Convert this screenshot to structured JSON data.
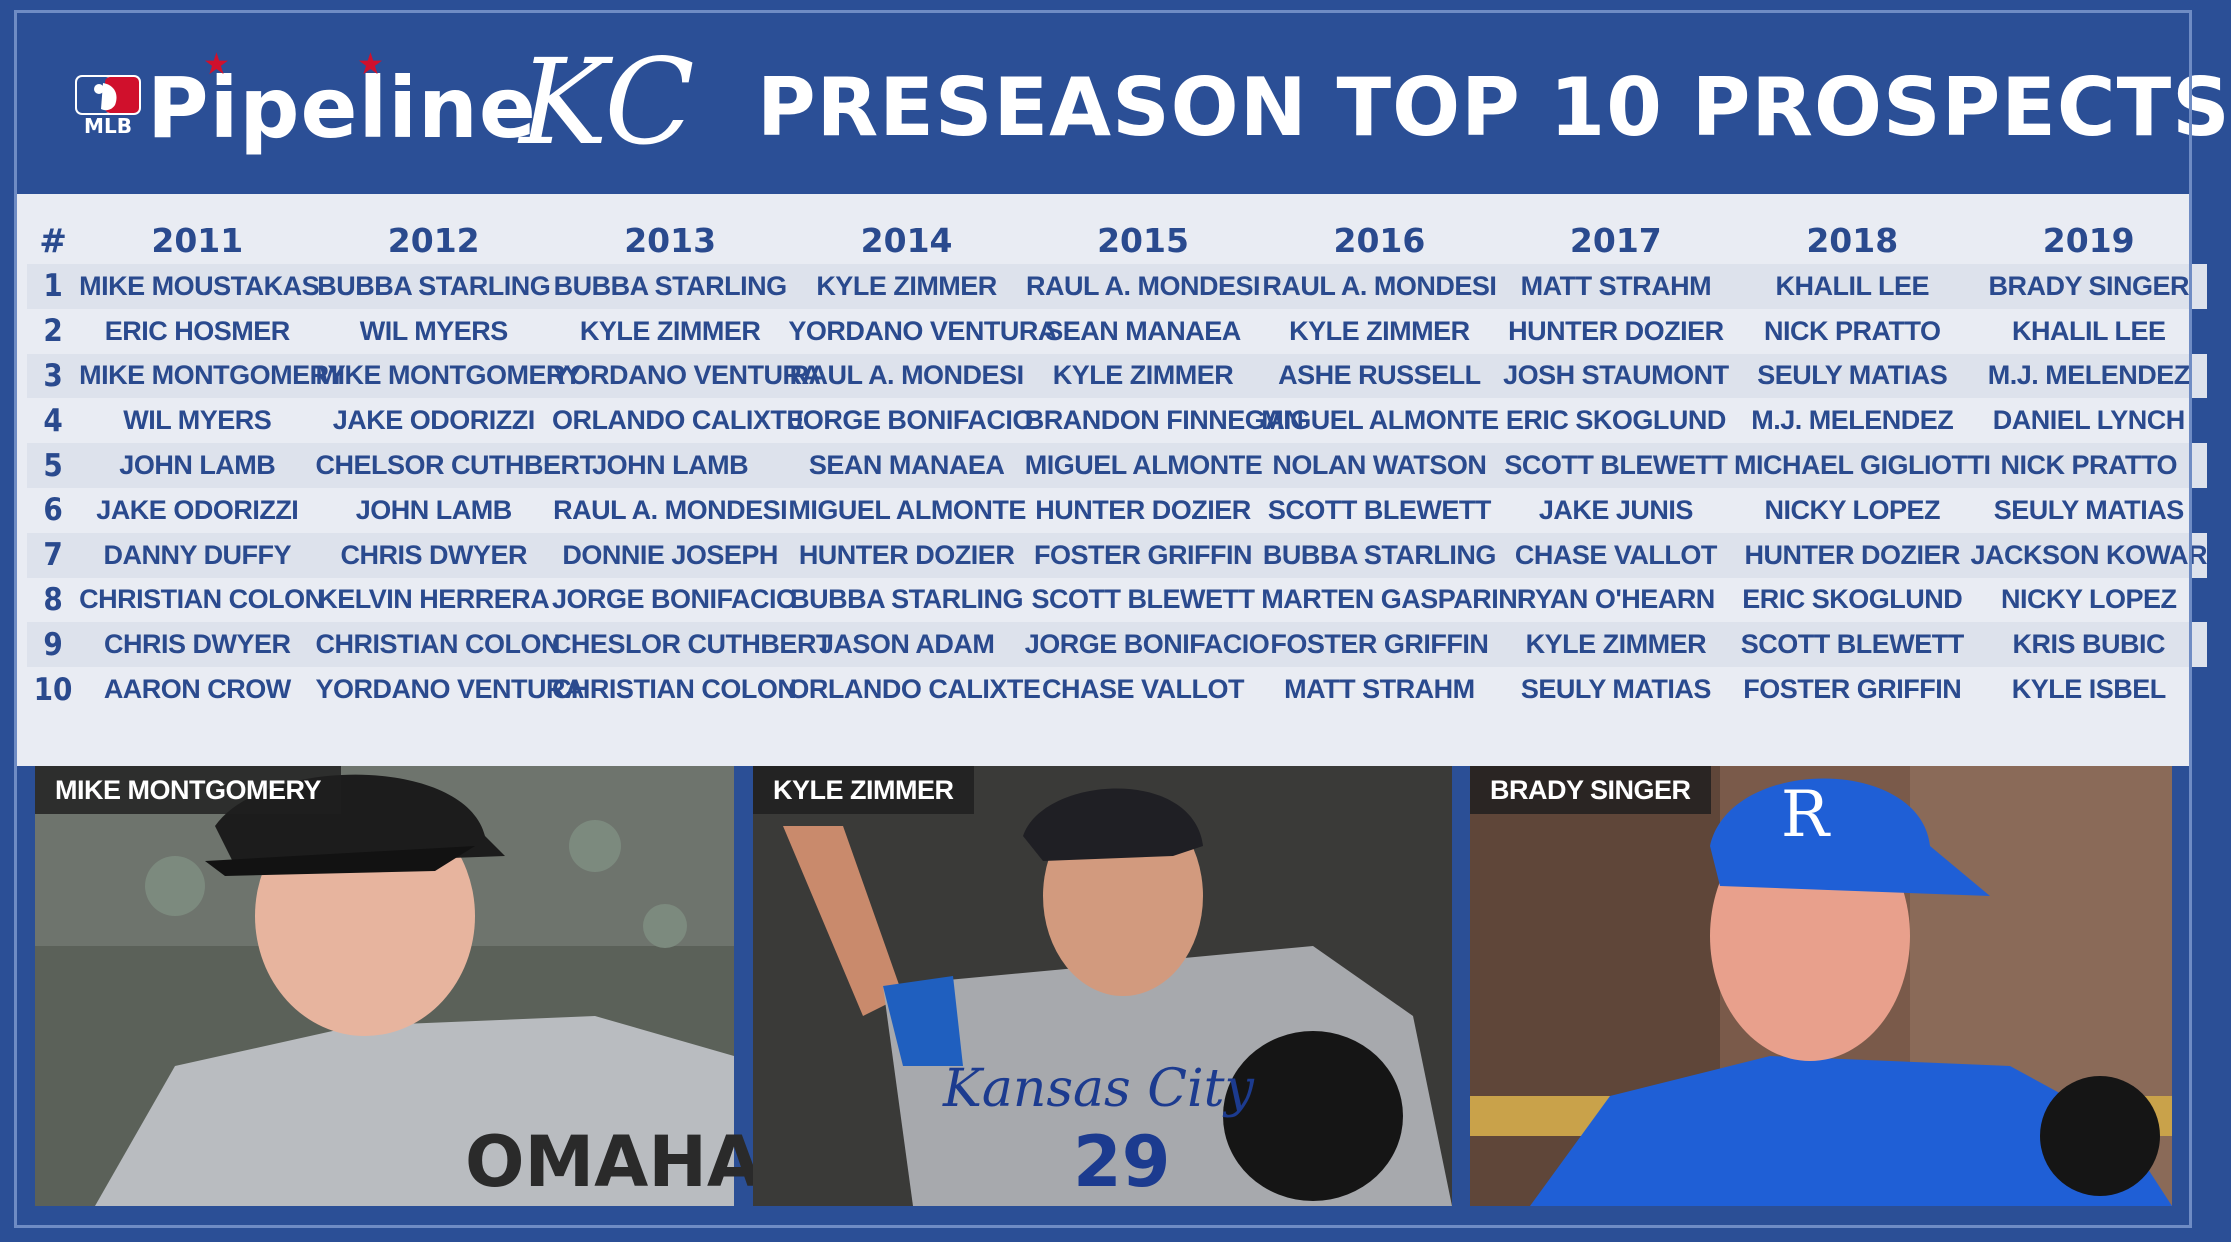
{
  "header": {
    "brand_small": "MLB",
    "brand_word": "Pipeline",
    "team_logo_text": "KC",
    "title": "PRESEASON TOP 10 PROSPECTS"
  },
  "colors": {
    "navy": "#2b4f96",
    "text_blue": "#2a4a8e",
    "star_red": "#d0102c",
    "panel": "#e9ecf3"
  },
  "table": {
    "rank_header": "#",
    "years": [
      "2011",
      "2012",
      "2013",
      "2014",
      "2015",
      "2016",
      "2017",
      "2018",
      "2019"
    ],
    "rows": [
      {
        "rank": "1",
        "players": [
          "MIKE MOUSTAKAS",
          "BUBBA STARLING",
          "BUBBA STARLING",
          "KYLE ZIMMER",
          "RAUL A. MONDESI",
          "RAUL A. MONDESI",
          "MATT STRAHM",
          "KHALIL LEE",
          "BRADY SINGER"
        ]
      },
      {
        "rank": "2",
        "players": [
          "ERIC HOSMER",
          "WIL MYERS",
          "KYLE ZIMMER",
          "YORDANO VENTURA",
          "SEAN MANAEA",
          "KYLE ZIMMER",
          "HUNTER DOZIER",
          "NICK PRATTO",
          "KHALIL LEE"
        ]
      },
      {
        "rank": "3",
        "players": [
          "MIKE MONTGOMERY",
          "MIKE MONTGOMERY",
          "YORDANO VENTURA",
          "RAUL A. MONDESI",
          "KYLE ZIMMER",
          "ASHE RUSSELL",
          "JOSH STAUMONT",
          "SEULY MATIAS",
          "M.J. MELENDEZ"
        ]
      },
      {
        "rank": "4",
        "players": [
          "WIL MYERS",
          "JAKE ODORIZZI",
          "ORLANDO CALIXTE",
          "JORGE BONIFACIO",
          "BRANDON FINNEGAN",
          "MIGUEL ALMONTE",
          "ERIC SKOGLUND",
          "M.J. MELENDEZ",
          "DANIEL LYNCH"
        ]
      },
      {
        "rank": "5",
        "players": [
          "JOHN LAMB",
          "CHELSOR CUTHBERT",
          "JOHN LAMB",
          "SEAN MANAEA",
          "MIGUEL ALMONTE",
          "NOLAN WATSON",
          "SCOTT BLEWETT",
          "MICHAEL GIGLIOTTI",
          "NICK PRATTO"
        ]
      },
      {
        "rank": "6",
        "players": [
          "JAKE ODORIZZI",
          "JOHN LAMB",
          "RAUL A. MONDESI",
          "MIGUEL ALMONTE",
          "HUNTER DOZIER",
          "SCOTT BLEWETT",
          "JAKE JUNIS",
          "NICKY LOPEZ",
          "SEULY MATIAS"
        ]
      },
      {
        "rank": "7",
        "players": [
          "DANNY DUFFY",
          "CHRIS DWYER",
          "DONNIE JOSEPH",
          "HUNTER DOZIER",
          "FOSTER GRIFFIN",
          "BUBBA STARLING",
          "CHASE VALLOT",
          "HUNTER DOZIER",
          "JACKSON KOWAR"
        ]
      },
      {
        "rank": "8",
        "players": [
          "CHRISTIAN COLON",
          "KELVIN HERRERA",
          "JORGE BONIFACIO",
          "BUBBA STARLING",
          "SCOTT BLEWETT",
          "MARTEN GASPARINI",
          "RYAN O'HEARN",
          "ERIC SKOGLUND",
          "NICKY LOPEZ"
        ]
      },
      {
        "rank": "9",
        "players": [
          "CHRIS DWYER",
          "CHRISTIAN COLON",
          "CHESLOR CUTHBERT",
          "JASON ADAM",
          "JORGE BONIFACIO",
          "FOSTER GRIFFIN",
          "KYLE ZIMMER",
          "SCOTT BLEWETT",
          "KRIS BUBIC"
        ]
      },
      {
        "rank": "10",
        "players": [
          "AARON CROW",
          "YORDANO VENTURA",
          "CHRISTIAN COLON",
          "ORLANDO CALIXTE",
          "CHASE VALLOT",
          "MATT STRAHM",
          "SEULY MATIAS",
          "FOSTER GRIFFIN",
          "KYLE ISBEL"
        ]
      }
    ]
  },
  "photos": [
    {
      "caption": "MIKE MONTGOMERY",
      "jersey_text": "OMAHA"
    },
    {
      "caption": "KYLE ZIMMER",
      "jersey_text": "Kansas City",
      "jersey_number": "29"
    },
    {
      "caption": "BRADY SINGER",
      "cap_letter": "R"
    }
  ]
}
